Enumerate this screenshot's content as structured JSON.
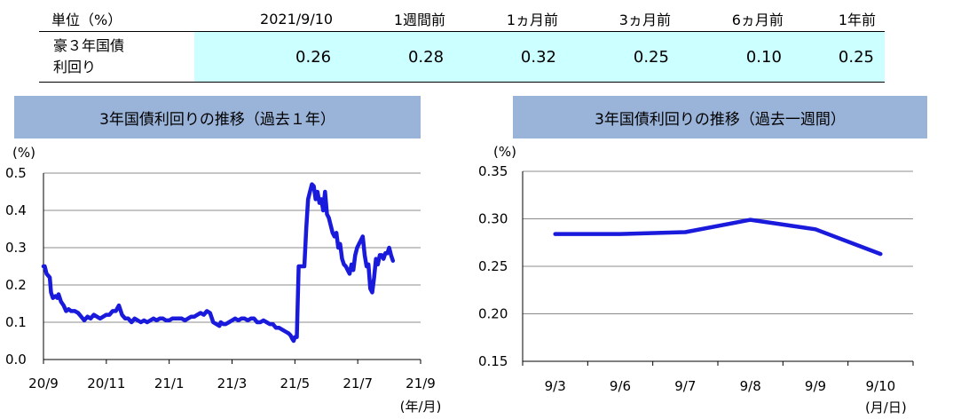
{
  "table": {
    "header": [
      "単位（%）",
      "2021/9/10",
      "1週間前",
      "1ヵ月前",
      "3ヵ月前",
      "6ヵ月前",
      "1年前"
    ],
    "row_label_line1": "豪３年国債",
    "row_label_line2": "利回り",
    "values": [
      "0.26",
      "0.28",
      "0.32",
      "0.25",
      "0.10",
      "0.25"
    ]
  },
  "colors": {
    "line": "#1a1adc",
    "title_bg": "#99b3d9",
    "table_highlight": "#ccffff",
    "grid": "#8c8c8c"
  },
  "chart_data": [
    {
      "type": "line",
      "title": "3年国債利回りの推移（過去１年）",
      "unit_label": "(%)",
      "x_unit_label": "(年/月)",
      "ylim": [
        0,
        0.5
      ],
      "yticks": [
        "0.5",
        "0.4",
        "0.3",
        "0.2",
        "0.1",
        "0.0"
      ],
      "xticks": [
        "20/9",
        "20/11",
        "21/1",
        "21/3",
        "21/5",
        "21/7",
        "21/9"
      ],
      "grid": true,
      "series": [
        {
          "values": [
            [
              0,
              0.25
            ],
            [
              0.02,
              0.25
            ],
            [
              0.05,
              0.23
            ],
            [
              0.1,
              0.22
            ],
            [
              0.12,
              0.18
            ],
            [
              0.15,
              0.165
            ],
            [
              0.19,
              0.17
            ],
            [
              0.22,
              0.165
            ],
            [
              0.24,
              0.175
            ],
            [
              0.28,
              0.155
            ],
            [
              0.32,
              0.145
            ],
            [
              0.36,
              0.13
            ],
            [
              0.4,
              0.135
            ],
            [
              0.44,
              0.13
            ],
            [
              0.5,
              0.13
            ],
            [
              0.55,
              0.125
            ],
            [
              0.6,
              0.115
            ],
            [
              0.65,
              0.105
            ],
            [
              0.7,
              0.115
            ],
            [
              0.75,
              0.11
            ],
            [
              0.8,
              0.12
            ],
            [
              0.85,
              0.115
            ],
            [
              0.9,
              0.11
            ],
            [
              0.95,
              0.115
            ],
            [
              1.0,
              0.12
            ],
            [
              1.05,
              0.12
            ],
            [
              1.1,
              0.13
            ],
            [
              1.15,
              0.13
            ],
            [
              1.2,
              0.145
            ],
            [
              1.25,
              0.12
            ],
            [
              1.3,
              0.11
            ],
            [
              1.35,
              0.11
            ],
            [
              1.4,
              0.1
            ],
            [
              1.45,
              0.11
            ],
            [
              1.5,
              0.105
            ],
            [
              1.55,
              0.1
            ],
            [
              1.6,
              0.105
            ],
            [
              1.65,
              0.1
            ],
            [
              1.7,
              0.105
            ],
            [
              1.75,
              0.11
            ],
            [
              1.8,
              0.105
            ],
            [
              1.85,
              0.11
            ],
            [
              1.9,
              0.11
            ],
            [
              1.95,
              0.105
            ],
            [
              2.0,
              0.105
            ],
            [
              2.05,
              0.11
            ],
            [
              2.1,
              0.11
            ],
            [
              2.15,
              0.11
            ],
            [
              2.2,
              0.11
            ],
            [
              2.25,
              0.105
            ],
            [
              2.3,
              0.11
            ],
            [
              2.35,
              0.115
            ],
            [
              2.4,
              0.115
            ],
            [
              2.45,
              0.12
            ],
            [
              2.5,
              0.125
            ],
            [
              2.55,
              0.12
            ],
            [
              2.6,
              0.13
            ],
            [
              2.65,
              0.125
            ],
            [
              2.7,
              0.1
            ],
            [
              2.75,
              0.095
            ],
            [
              2.8,
              0.09
            ],
            [
              2.82,
              0.1
            ],
            [
              2.86,
              0.095
            ],
            [
              2.9,
              0.095
            ],
            [
              2.95,
              0.1
            ],
            [
              3.0,
              0.105
            ],
            [
              3.05,
              0.11
            ],
            [
              3.1,
              0.105
            ],
            [
              3.15,
              0.11
            ],
            [
              3.2,
              0.11
            ],
            [
              3.25,
              0.105
            ],
            [
              3.3,
              0.11
            ],
            [
              3.35,
              0.11
            ],
            [
              3.4,
              0.1
            ],
            [
              3.45,
              0.1
            ],
            [
              3.5,
              0.105
            ],
            [
              3.55,
              0.1
            ],
            [
              3.6,
              0.095
            ],
            [
              3.65,
              0.095
            ],
            [
              3.7,
              0.085
            ],
            [
              3.75,
              0.085
            ],
            [
              3.8,
              0.08
            ],
            [
              3.85,
              0.075
            ],
            [
              3.9,
              0.07
            ],
            [
              3.93,
              0.065
            ],
            [
              3.96,
              0.055
            ],
            [
              3.98,
              0.05
            ],
            [
              4.0,
              0.06
            ],
            [
              4.03,
              0.06
            ],
            [
              4.06,
              0.25
            ],
            [
              4.1,
              0.25
            ],
            [
              4.15,
              0.25
            ],
            [
              4.18,
              0.35
            ],
            [
              4.21,
              0.43
            ],
            [
              4.24,
              0.45
            ],
            [
              4.27,
              0.47
            ],
            [
              4.3,
              0.465
            ],
            [
              4.33,
              0.43
            ],
            [
              4.36,
              0.45
            ],
            [
              4.39,
              0.42
            ],
            [
              4.42,
              0.43
            ],
            [
              4.45,
              0.4
            ],
            [
              4.48,
              0.45
            ],
            [
              4.51,
              0.39
            ],
            [
              4.54,
              0.38
            ],
            [
              4.57,
              0.36
            ],
            [
              4.6,
              0.34
            ],
            [
              4.63,
              0.33
            ],
            [
              4.66,
              0.34
            ],
            [
              4.69,
              0.3
            ],
            [
              4.72,
              0.31
            ],
            [
              4.75,
              0.27
            ],
            [
              4.78,
              0.255
            ],
            [
              4.81,
              0.25
            ],
            [
              4.84,
              0.24
            ],
            [
              4.87,
              0.23
            ],
            [
              4.9,
              0.255
            ],
            [
              4.93,
              0.24
            ],
            [
              4.96,
              0.28
            ],
            [
              4.99,
              0.3
            ],
            [
              5.02,
              0.31
            ],
            [
              5.05,
              0.32
            ],
            [
              5.08,
              0.33
            ],
            [
              5.11,
              0.28
            ],
            [
              5.14,
              0.25
            ],
            [
              5.17,
              0.255
            ],
            [
              5.2,
              0.19
            ],
            [
              5.23,
              0.18
            ],
            [
              5.26,
              0.22
            ],
            [
              5.29,
              0.27
            ],
            [
              5.32,
              0.255
            ],
            [
              5.35,
              0.28
            ],
            [
              5.38,
              0.28
            ],
            [
              5.41,
              0.27
            ],
            [
              5.44,
              0.285
            ],
            [
              5.47,
              0.285
            ],
            [
              5.5,
              0.3
            ],
            [
              5.53,
              0.28
            ],
            [
              5.56,
              0.265
            ]
          ]
        }
      ]
    },
    {
      "type": "line",
      "title": "3年国債利回りの推移（過去一週間）",
      "unit_label": "(%)",
      "x_unit_label": "(月/日)",
      "ylim": [
        0.15,
        0.35
      ],
      "yticks": [
        "0.35",
        "0.30",
        "0.25",
        "0.20",
        "0.15"
      ],
      "categories": [
        "9/3",
        "9/6",
        "9/7",
        "9/8",
        "9/9",
        "9/10"
      ],
      "grid": true,
      "series": [
        {
          "values": [
            0.284,
            0.284,
            0.286,
            0.299,
            0.289,
            0.263
          ]
        }
      ]
    }
  ]
}
